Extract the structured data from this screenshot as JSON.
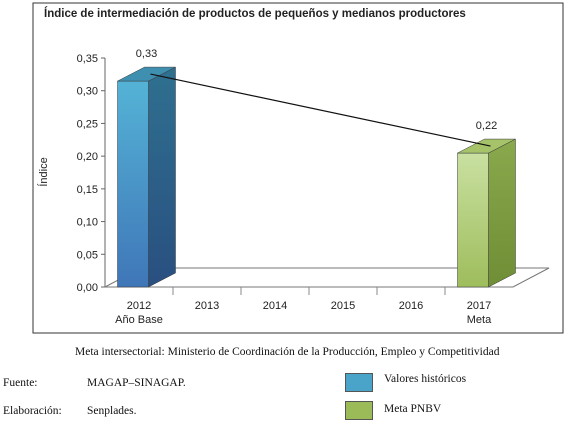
{
  "chart_data": {
    "type": "bar",
    "title": "Índice de intermediación de productos de pequeños y medianos productores",
    "ylabel": "Índice",
    "xlabel": "",
    "ylim": [
      0,
      0.35
    ],
    "yticks": [
      "0,00",
      "0,05",
      "0,10",
      "0,15",
      "0,20",
      "0,25",
      "0,30",
      "0,35"
    ],
    "categories": [
      "2012",
      "2013",
      "2014",
      "2015",
      "2016",
      "2017"
    ],
    "category_sublabels": [
      "Año Base",
      "",
      "",
      "",
      "",
      "Meta"
    ],
    "bars": [
      {
        "category": "2012",
        "value": 0.33,
        "label": "0,33",
        "series": "Valores históricos"
      },
      {
        "category": "2017",
        "value": 0.22,
        "label": "0,22",
        "series": "Meta PNBV"
      }
    ],
    "trend_line": {
      "from": "2012",
      "to": "2017"
    },
    "grid": false,
    "style": "3d-bars"
  },
  "legend": {
    "items": [
      {
        "label": "Valores históricos",
        "color": "#4aa3c8"
      },
      {
        "label": "Meta PNBV",
        "color": "#9bbb59"
      }
    ]
  },
  "notes": {
    "meta_intersectorial": "Meta intersectorial: Ministerio de Coordinación de la Producción, Empleo y Competitividad",
    "fuente_label": "Fuente:",
    "fuente_value": "MAGAP–SINAGAP.",
    "elaboracion_label": "Elaboración:",
    "elaboracion_value": "Senplades."
  },
  "colors": {
    "historic_front": "#4aa3c8",
    "historic_side": "#2c6a86",
    "historic_top": "#3f8fb0",
    "meta_front": "#b7d27f",
    "meta_side": "#7a9a3e",
    "meta_top": "#a6c36a"
  }
}
